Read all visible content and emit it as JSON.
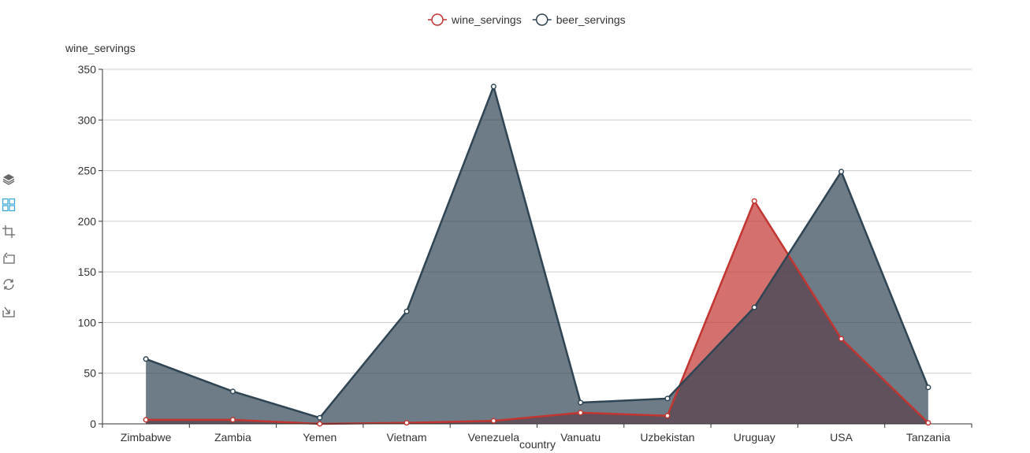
{
  "chart_data": {
    "type": "area",
    "categories": [
      "Zimbabwe",
      "Zambia",
      "Yemen",
      "Vietnam",
      "Venezuela",
      "Vanuatu",
      "Uzbekistan",
      "Uruguay",
      "USA",
      "Tanzania"
    ],
    "series": [
      {
        "name": "wine_servings",
        "color": "#c23531",
        "values": [
          4,
          4,
          0,
          1,
          3,
          11,
          8,
          220,
          84,
          1
        ]
      },
      {
        "name": "beer_servings",
        "color": "#2f4554",
        "values": [
          64,
          32,
          6,
          111,
          333,
          21,
          25,
          115,
          249,
          36
        ]
      }
    ],
    "xlabel": "country",
    "ylabel": "wine_servings",
    "ylim": [
      0,
      350
    ],
    "yticks": [
      0,
      50,
      100,
      150,
      200,
      250,
      300,
      350
    ],
    "grid": true,
    "legend_position": "top-center"
  },
  "toolbox": {
    "icons": [
      "stack-icon",
      "tiled-icon",
      "zoom-icon",
      "zoom-reset-icon",
      "restore-icon",
      "save-image-icon"
    ],
    "active_color": "#3fa7dc",
    "default_color": "#666666"
  }
}
